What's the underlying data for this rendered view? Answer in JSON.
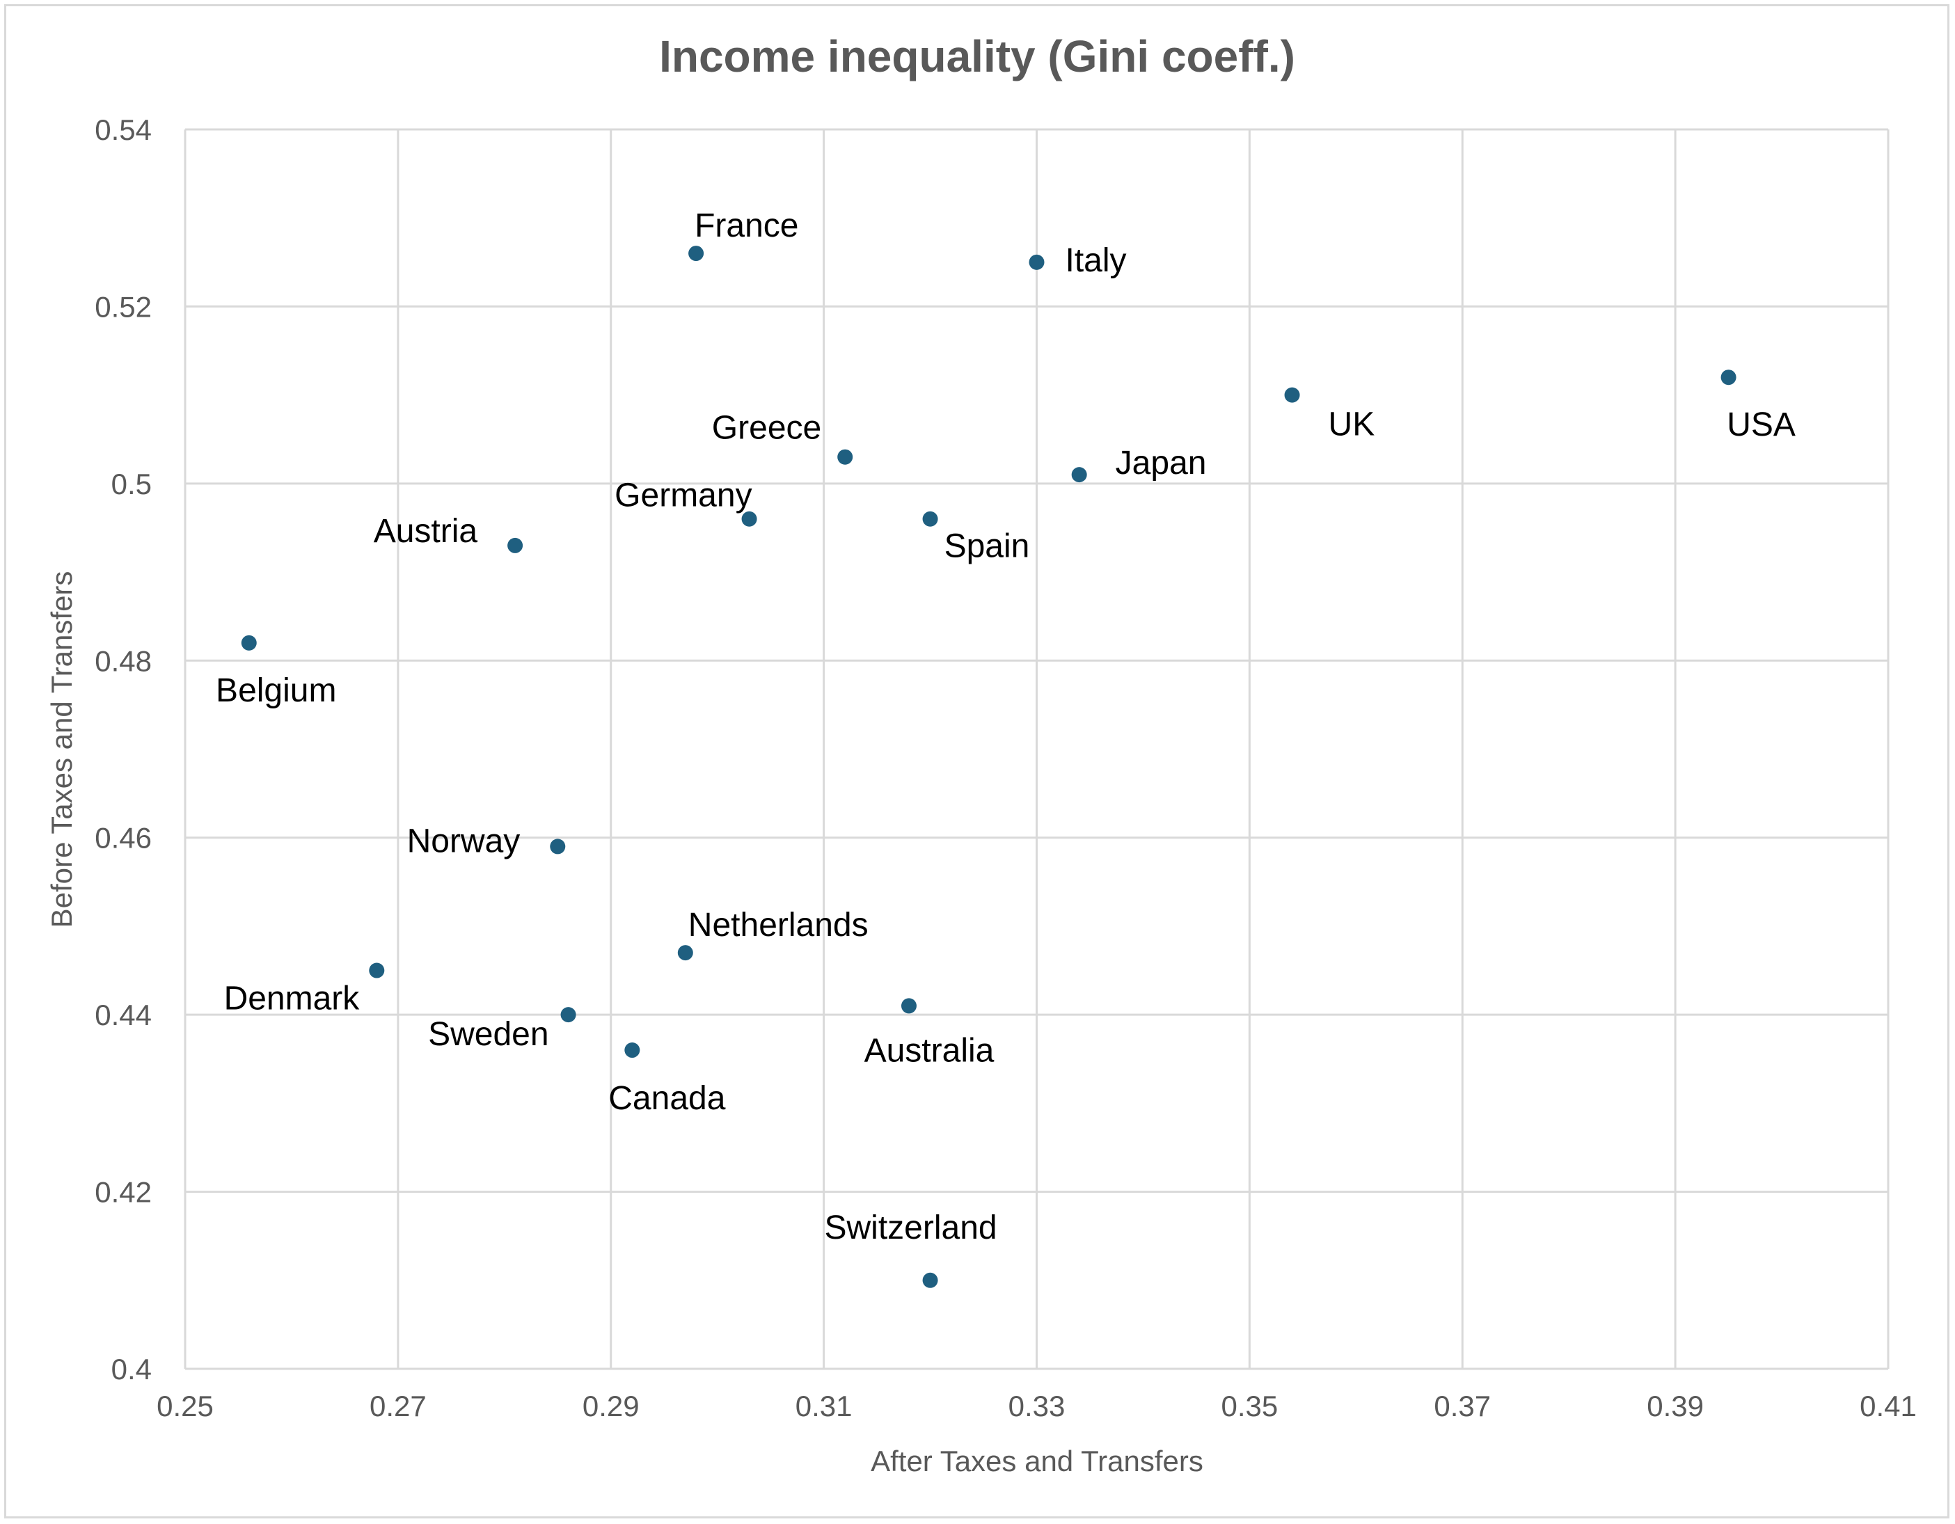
{
  "chart_data": {
    "type": "scatter",
    "title": "Income inequality (Gini coeff.)",
    "xlabel": "After Taxes and Transfers",
    "ylabel": "Before Taxes and Transfers",
    "xlim": [
      0.25,
      0.41
    ],
    "ylim": [
      0.4,
      0.54
    ],
    "x_ticks": [
      0.25,
      0.27,
      0.29,
      0.31,
      0.33,
      0.35,
      0.37,
      0.39,
      0.41
    ],
    "x_tick_labels": [
      "0.25",
      "0.27",
      "0.29",
      "0.31",
      "0.33",
      "0.35",
      "0.37",
      "0.39",
      "0.41"
    ],
    "y_ticks": [
      0.4,
      0.42,
      0.44,
      0.46,
      0.48,
      0.5,
      0.52,
      0.54
    ],
    "y_tick_labels": [
      "0.4",
      "0.42",
      "0.44",
      "0.46",
      "0.48",
      "0.5",
      "0.52",
      "0.54"
    ],
    "grid": true,
    "marker_color": "#1f5f80",
    "points": [
      {
        "label": "France",
        "x": 0.298,
        "y": 0.526,
        "label_pos": "above-right"
      },
      {
        "label": "Italy",
        "x": 0.33,
        "y": 0.525,
        "label_pos": "right"
      },
      {
        "label": "UK",
        "x": 0.354,
        "y": 0.51,
        "label_pos": "below-right"
      },
      {
        "label": "USA",
        "x": 0.395,
        "y": 0.512,
        "label_pos": "below"
      },
      {
        "label": "Greece",
        "x": 0.312,
        "y": 0.503,
        "label_pos": "above-left"
      },
      {
        "label": "Japan",
        "x": 0.334,
        "y": 0.501,
        "label_pos": "right"
      },
      {
        "label": "Germany",
        "x": 0.303,
        "y": 0.496,
        "label_pos": "above-left"
      },
      {
        "label": "Spain",
        "x": 0.32,
        "y": 0.496,
        "label_pos": "below-right"
      },
      {
        "label": "Austria",
        "x": 0.281,
        "y": 0.493,
        "label_pos": "left"
      },
      {
        "label": "Belgium",
        "x": 0.256,
        "y": 0.482,
        "label_pos": "below"
      },
      {
        "label": "Norway",
        "x": 0.285,
        "y": 0.459,
        "label_pos": "left"
      },
      {
        "label": "Netherlands",
        "x": 0.297,
        "y": 0.447,
        "label_pos": "above-right"
      },
      {
        "label": "Denmark",
        "x": 0.268,
        "y": 0.445,
        "label_pos": "below-left"
      },
      {
        "label": "Australia",
        "x": 0.318,
        "y": 0.441,
        "label_pos": "below"
      },
      {
        "label": "Sweden",
        "x": 0.286,
        "y": 0.44,
        "label_pos": "below-left"
      },
      {
        "label": "Canada",
        "x": 0.292,
        "y": 0.436,
        "label_pos": "below"
      },
      {
        "label": "Switzerland",
        "x": 0.32,
        "y": 0.41,
        "label_pos": "above"
      }
    ]
  },
  "colors": {
    "gridline": "#d9d9d9",
    "axis_text": "#595959",
    "label_text": "#000000",
    "frame": "#d9d9d9"
  }
}
